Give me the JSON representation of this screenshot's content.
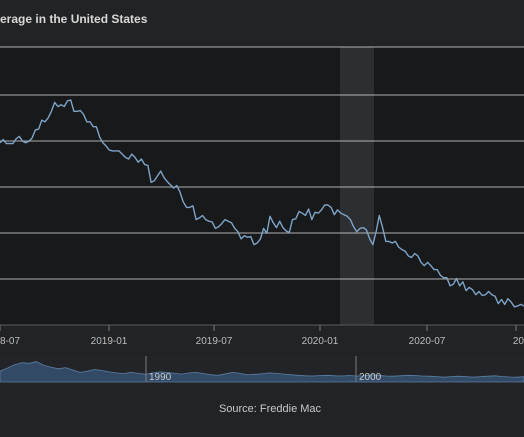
{
  "chart_data": {
    "type": "line",
    "title": "erage in the United States",
    "source": "Source: Freddie Mac",
    "x_tick_labels": [
      "8-07",
      "2019-01",
      "2019-07",
      "2020-01",
      "2020-07",
      "20"
    ],
    "navigator_labels": [
      "1990",
      "2000"
    ],
    "grid": true,
    "colors": {
      "line": "#7ea4c8",
      "grid": "#e2e2e2",
      "recession_band": "#2c2e31",
      "plot_bg": "#18191b",
      "navigator_fill": "#334a66"
    },
    "shaded_period": {
      "label": "recession"
    },
    "series": [
      {
        "values": [
          4.55,
          4.59,
          4.54,
          4.54,
          4.54,
          4.6,
          4.63,
          4.57,
          4.55,
          4.57,
          4.61,
          4.71,
          4.72,
          4.83,
          4.81,
          4.86,
          4.94,
          5.05,
          5.0,
          5.02,
          5.0,
          5.07,
          5.08,
          4.94,
          4.94,
          4.95,
          4.9,
          4.81,
          4.81,
          4.75,
          4.75,
          4.62,
          4.55,
          4.51,
          4.46,
          4.45,
          4.45,
          4.45,
          4.41,
          4.37,
          4.35,
          4.41,
          4.37,
          4.31,
          4.35,
          4.28,
          4.27,
          4.06,
          4.08,
          4.14,
          4.2,
          4.12,
          4.07,
          4.03,
          3.99,
          4.02,
          3.94,
          3.82,
          3.75,
          3.75,
          3.77,
          3.6,
          3.62,
          3.65,
          3.6,
          3.58,
          3.57,
          3.49,
          3.51,
          3.55,
          3.6,
          3.58,
          3.56,
          3.49,
          3.45,
          3.36,
          3.4,
          3.38,
          3.39,
          3.29,
          3.31,
          3.36,
          3.49,
          3.43,
          3.64,
          3.56,
          3.5,
          3.58,
          3.5,
          3.46,
          3.44,
          3.6,
          3.61,
          3.7,
          3.68,
          3.65,
          3.73,
          3.6,
          3.69,
          3.68,
          3.72,
          3.78,
          3.78,
          3.75,
          3.66,
          3.72,
          3.68,
          3.66,
          3.64,
          3.6,
          3.51,
          3.45,
          3.49,
          3.5,
          3.47,
          3.36,
          3.29,
          3.45,
          3.65,
          3.5,
          3.33,
          3.33,
          3.31,
          3.33,
          3.26,
          3.23,
          3.21,
          3.15,
          3.13,
          3.18,
          3.15,
          3.07,
          3.03,
          3.07,
          3.03,
          2.98,
          2.98,
          2.91,
          2.88,
          2.88,
          2.78,
          2.8,
          2.87,
          2.78,
          2.83,
          2.72,
          2.76,
          2.73,
          2.67,
          2.71,
          2.66,
          2.67,
          2.71,
          2.67,
          2.65,
          2.56,
          2.61,
          2.55,
          2.62,
          2.58,
          2.52,
          2.53,
          2.55,
          2.53
        ]
      }
    ],
    "navigator_values": [
      0.45,
      0.58,
      0.72,
      0.8,
      0.78,
      0.85,
      0.7,
      0.62,
      0.55,
      0.6,
      0.5,
      0.4,
      0.45,
      0.52,
      0.48,
      0.42,
      0.38,
      0.35,
      0.4,
      0.36,
      0.32,
      0.38,
      0.42,
      0.4,
      0.36,
      0.33,
      0.38,
      0.4,
      0.35,
      0.3,
      0.28,
      0.34,
      0.4,
      0.36,
      0.3,
      0.32,
      0.34,
      0.38,
      0.36,
      0.33,
      0.3,
      0.28,
      0.26,
      0.25,
      0.27,
      0.28,
      0.26,
      0.25,
      0.27,
      0.25,
      0.26,
      0.3,
      0.28,
      0.25,
      0.24,
      0.26,
      0.28,
      0.27,
      0.25,
      0.24,
      0.22,
      0.2,
      0.22,
      0.24,
      0.22,
      0.2,
      0.22,
      0.24,
      0.26,
      0.23,
      0.21,
      0.2,
      0.22
    ]
  }
}
